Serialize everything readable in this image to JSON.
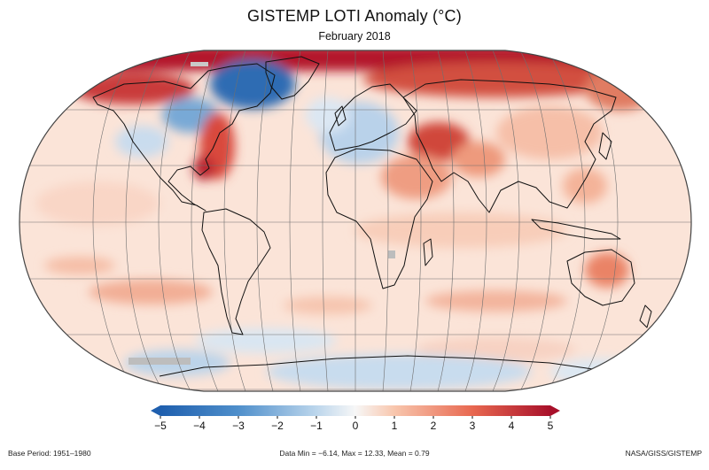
{
  "header": {
    "title": "GISTEMP LOTI Anomaly (°C)",
    "subtitle": "February 2018"
  },
  "colorbar": {
    "ticks": [
      "−5",
      "−4",
      "−3",
      "−2",
      "−1",
      "0",
      "1",
      "2",
      "3",
      "4",
      "5"
    ],
    "min": -5,
    "max": 5,
    "colors": {
      "cold": "#2b6cb8",
      "mid": "#f7f7f7",
      "warm": "#b5172a"
    }
  },
  "footer": {
    "base_period": "Base Period: 1951–1980",
    "stats": "Data Min = −6.14, Max = 12.33, Mean = 0.79",
    "credit": "NASA/GISS/GISTEMP"
  }
}
